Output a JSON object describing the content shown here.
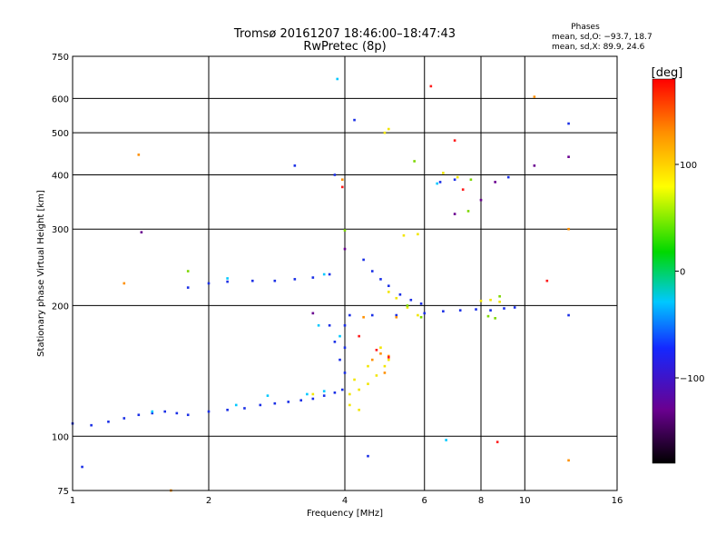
{
  "chart_data": {
    "type": "scatter",
    "title": "Tromsø 20161207 18:46:00–18:47:43",
    "subtitle": "RwPretec (8p)",
    "xlabel": "Frequency [MHz]",
    "ylabel": "Stationary phase Virtual Height [km]",
    "x_scale": "log",
    "y_scale": "log",
    "xlim": [
      1,
      16
    ],
    "ylim": [
      75,
      750
    ],
    "x_ticks": [
      1,
      2,
      4,
      6,
      8,
      10,
      16
    ],
    "y_ticks": [
      75,
      100,
      200,
      300,
      400,
      500,
      600,
      750
    ],
    "grid": true,
    "phases_box": {
      "title": "Phases",
      "line_o": "mean, sd,O: −93.7, 18.7",
      "line_x": "mean, sd,X:  89.9, 24.6"
    },
    "colorbar": {
      "label": "[deg]",
      "range": [
        -180,
        180
      ],
      "ticks": [
        100,
        0,
        -100
      ],
      "colors": [
        "#000000",
        "#6a0090",
        "#1428ff",
        "#00c8ff",
        "#00d800",
        "#ffff00",
        "#ff9000",
        "#ff0000"
      ]
    },
    "series": [
      {
        "color": "#1a2fe6",
        "points": [
          [
            1.0,
            107
          ],
          [
            1.1,
            106
          ],
          [
            1.2,
            108
          ],
          [
            1.3,
            110
          ],
          [
            1.4,
            112
          ],
          [
            1.5,
            113
          ],
          [
            1.6,
            114
          ],
          [
            1.7,
            113
          ],
          [
            1.8,
            112
          ],
          [
            2.0,
            114
          ],
          [
            2.2,
            115
          ],
          [
            2.4,
            116
          ],
          [
            2.6,
            118
          ],
          [
            2.8,
            119
          ],
          [
            3.0,
            120
          ],
          [
            3.2,
            121
          ],
          [
            3.4,
            122
          ],
          [
            3.6,
            124
          ],
          [
            3.8,
            126
          ],
          [
            3.95,
            128
          ],
          [
            4.0,
            140
          ],
          [
            4.0,
            160
          ],
          [
            4.0,
            180
          ],
          [
            3.9,
            150
          ],
          [
            3.8,
            165
          ],
          [
            3.7,
            180
          ],
          [
            1.8,
            220
          ],
          [
            2.0,
            225
          ],
          [
            2.2,
            227
          ],
          [
            2.5,
            228
          ],
          [
            2.8,
            228
          ],
          [
            3.1,
            230
          ],
          [
            3.4,
            232
          ],
          [
            3.7,
            236
          ],
          [
            4.4,
            255
          ],
          [
            4.6,
            240
          ],
          [
            4.8,
            230
          ],
          [
            5.0,
            222
          ],
          [
            5.3,
            212
          ],
          [
            5.6,
            206
          ],
          [
            5.9,
            202
          ],
          [
            4.1,
            190
          ],
          [
            4.6,
            190
          ],
          [
            5.2,
            190
          ],
          [
            6.0,
            192
          ],
          [
            6.6,
            194
          ],
          [
            7.2,
            195
          ],
          [
            7.8,
            196
          ],
          [
            8.4,
            195
          ],
          [
            9.0,
            197
          ],
          [
            9.5,
            198
          ],
          [
            4.2,
            535
          ],
          [
            6.5,
            385
          ],
          [
            7.0,
            390
          ],
          [
            9.2,
            395
          ],
          [
            12.5,
            525
          ],
          [
            12.5,
            190
          ],
          [
            3.8,
            400
          ],
          [
            3.1,
            420
          ],
          [
            1.05,
            85
          ],
          [
            4.5,
            90
          ]
        ]
      },
      {
        "color": "#00c8ff",
        "points": [
          [
            1.5,
            114
          ],
          [
            2.3,
            118
          ],
          [
            2.7,
            124
          ],
          [
            3.3,
            125
          ],
          [
            3.6,
            127
          ],
          [
            3.9,
            170
          ],
          [
            3.5,
            180
          ],
          [
            6.4,
            382
          ],
          [
            3.85,
            665
          ],
          [
            2.2,
            231
          ],
          [
            3.6,
            236
          ],
          [
            6.7,
            98
          ]
        ]
      },
      {
        "color": "#f2e600",
        "points": [
          [
            4.1,
            125
          ],
          [
            4.3,
            128
          ],
          [
            4.5,
            132
          ],
          [
            4.7,
            138
          ],
          [
            4.9,
            145
          ],
          [
            4.2,
            135
          ],
          [
            4.5,
            145
          ],
          [
            4.8,
            160
          ],
          [
            5.0,
            150
          ],
          [
            4.1,
            118
          ],
          [
            4.3,
            115
          ],
          [
            5.0,
            215
          ],
          [
            5.2,
            208
          ],
          [
            5.5,
            198
          ],
          [
            5.8,
            190
          ],
          [
            5.4,
            290
          ],
          [
            5.8,
            292
          ],
          [
            6.6,
            404
          ],
          [
            7.1,
            395
          ],
          [
            8.0,
            205
          ],
          [
            8.4,
            206
          ],
          [
            8.8,
            204
          ],
          [
            5.0,
            510
          ],
          [
            3.4,
            125
          ],
          [
            4.9,
            500
          ]
        ]
      },
      {
        "color": "#7cd600",
        "points": [
          [
            5.5,
            200
          ],
          [
            5.9,
            188
          ],
          [
            8.3,
            189
          ],
          [
            8.6,
            187
          ],
          [
            4.0,
            298
          ],
          [
            5.7,
            430
          ],
          [
            7.6,
            390
          ],
          [
            1.8,
            240
          ],
          [
            8.8,
            210
          ],
          [
            7.5,
            330
          ]
        ]
      },
      {
        "color": "#ff9000",
        "points": [
          [
            4.6,
            150
          ],
          [
            4.8,
            155
          ],
          [
            5.0,
            153
          ],
          [
            4.9,
            140
          ],
          [
            5.2,
            188
          ],
          [
            4.4,
            188
          ],
          [
            1.4,
            445
          ],
          [
            1.3,
            225
          ],
          [
            1.65,
            75
          ],
          [
            3.95,
            390
          ],
          [
            10.5,
            605
          ],
          [
            12.5,
            88
          ],
          [
            12.5,
            300
          ]
        ]
      },
      {
        "color": "#ff1a1a",
        "points": [
          [
            4.7,
            158
          ],
          [
            5.0,
            152
          ],
          [
            4.3,
            170
          ],
          [
            3.95,
            375
          ],
          [
            7.0,
            480
          ],
          [
            7.3,
            370
          ],
          [
            8.7,
            97
          ],
          [
            11.2,
            228
          ],
          [
            6.2,
            640
          ]
        ]
      },
      {
        "color": "#6a0090",
        "points": [
          [
            1.42,
            295
          ],
          [
            3.4,
            192
          ],
          [
            4.0,
            270
          ],
          [
            7.0,
            325
          ],
          [
            8.6,
            385
          ],
          [
            8.0,
            350
          ],
          [
            12.5,
            440
          ],
          [
            10.5,
            420
          ]
        ]
      }
    ]
  }
}
